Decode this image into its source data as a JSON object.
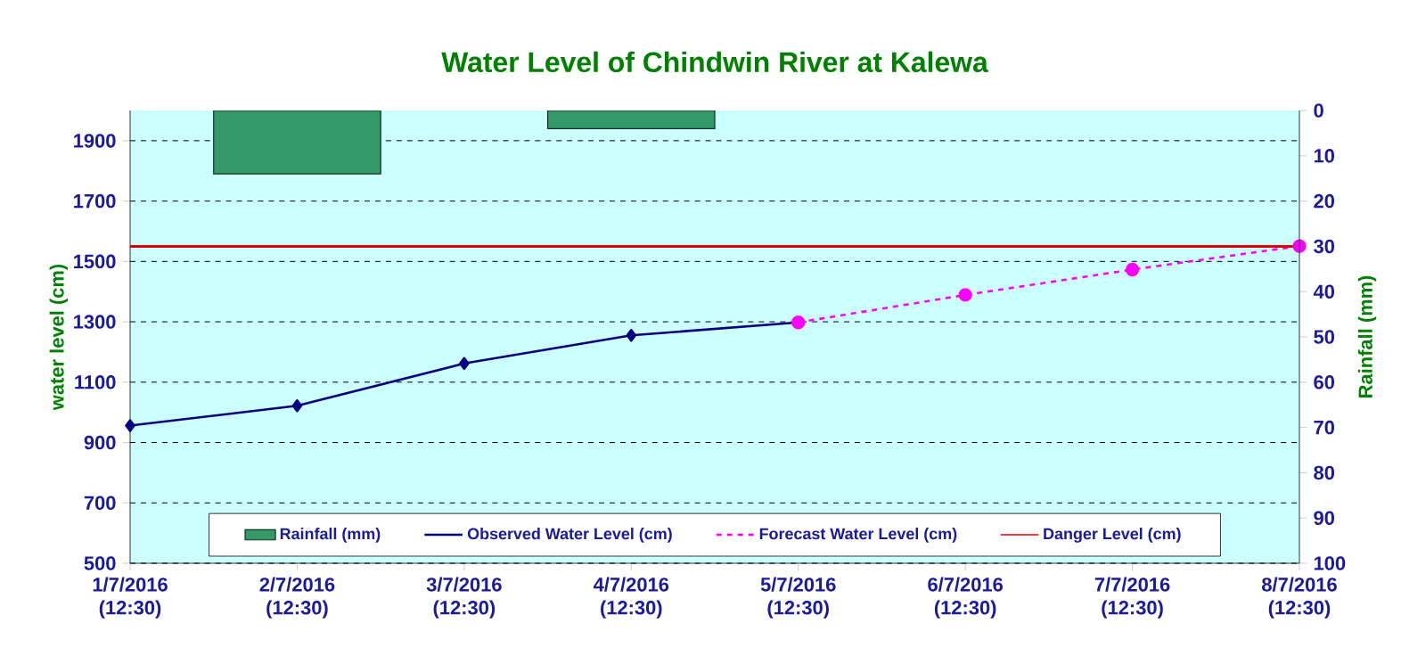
{
  "chart_data": {
    "type": "line",
    "title": "Water Level of Chindwin River at Kalewa",
    "ylabel": "water level (cm)",
    "y2label": "Rainfall (mm)",
    "categories": [
      "1/7/2016 (12:30)",
      "2/7/2016 (12:30)",
      "3/7/2016 (12:30)",
      "4/7/2016 (12:30)",
      "5/7/2016 (12:30)",
      "6/7/2016 (12:30)",
      "7/7/2016 (12:30)",
      "8/7/2016 (12:30)"
    ],
    "series": [
      {
        "name": "Rainfall (mm)",
        "type": "bar",
        "axis": "y2",
        "color": "#339966",
        "values": [
          null,
          14,
          null,
          4,
          null,
          null,
          null,
          null
        ]
      },
      {
        "name": "Observed Water Level (cm)",
        "color": "#000080",
        "marker": "diamond",
        "line_style": "solid",
        "values": [
          956,
          1022,
          1162,
          1255,
          1298,
          null,
          null,
          null
        ]
      },
      {
        "name": "Forecast Water Level (cm)",
        "color": "#ff00ff",
        "marker": "circle",
        "line_style": "dashed",
        "values": [
          null,
          null,
          null,
          null,
          1298,
          1389,
          1473,
          1551
        ]
      }
    ],
    "ref_lines": [
      {
        "axis": "y",
        "value": 1550,
        "label": "Danger Level (cm)",
        "color": "#dd0000",
        "line_style": "solid"
      }
    ],
    "ylim": [
      500,
      2000
    ],
    "yticks": [
      500,
      700,
      900,
      1100,
      1300,
      1500,
      1700,
      1900
    ],
    "y2lim": [
      100,
      0
    ],
    "y2ticks": [
      0,
      10,
      20,
      30,
      40,
      50,
      60,
      70,
      80,
      90,
      100
    ],
    "grid": "y",
    "legend": "bottom"
  }
}
